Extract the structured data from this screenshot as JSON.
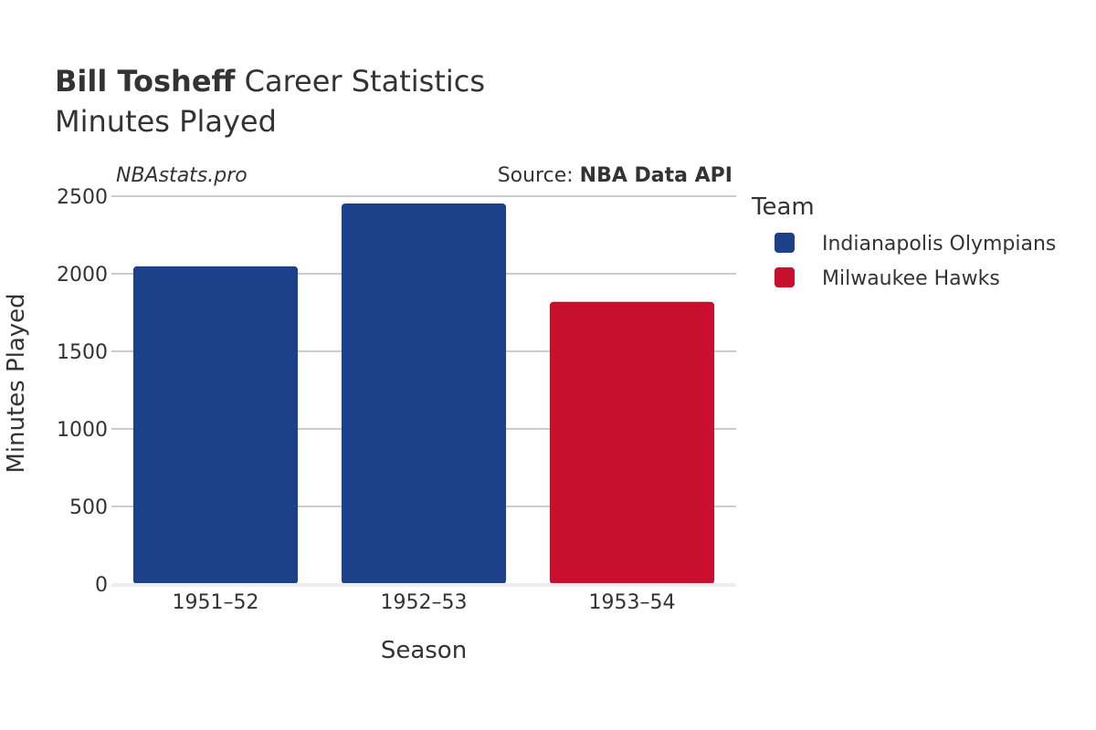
{
  "header": {
    "title_bold": "Bill Tosheff",
    "title_rest": " Career Statistics",
    "subtitle": "Minutes Played"
  },
  "watermark": "NBAstats.pro",
  "source": {
    "prefix": "Source: ",
    "name": "NBA Data API"
  },
  "colors": {
    "Indianapolis Olympians": "#1c418a",
    "Milwaukee Hawks": "#c8102e",
    "grid": "#bbbbbb",
    "text": "#333333"
  },
  "chart_data": {
    "type": "bar",
    "categories": [
      "1951–52",
      "1952–53",
      "1953–54"
    ],
    "values": [
      2048,
      2453,
      1819
    ],
    "teams": [
      "Indianapolis Olympians",
      "Indianapolis Olympians",
      "Milwaukee Hawks"
    ],
    "xlabel": "Season",
    "ylabel": "Minutes Played",
    "ylim": [
      0,
      2500
    ],
    "yticks": [
      0,
      500,
      1000,
      1500,
      2000,
      2500
    ],
    "grid": true,
    "legend": {
      "title": "Team",
      "position": "right",
      "entries": [
        "Indianapolis Olympians",
        "Milwaukee Hawks"
      ]
    }
  }
}
